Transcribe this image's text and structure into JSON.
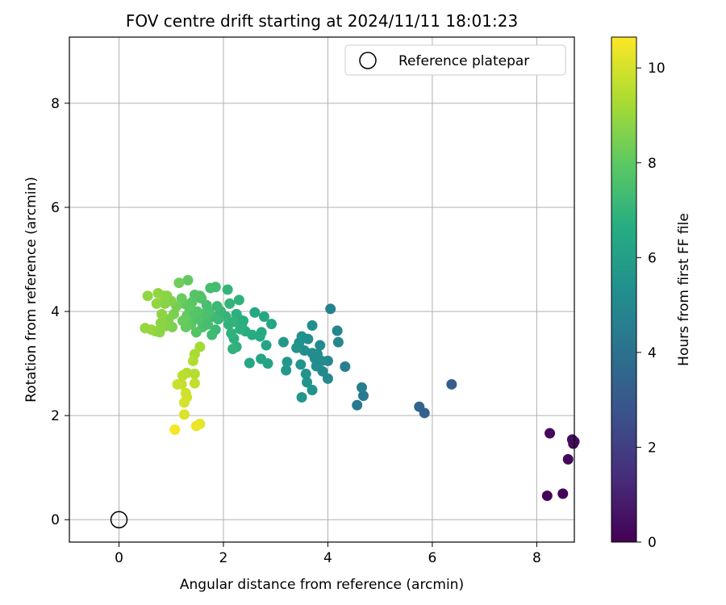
{
  "chart_data": {
    "type": "scatter",
    "title": "FOV centre drift starting at 2024/11/11 18:01:23",
    "xlabel": "Angular distance from reference (arcmin)",
    "ylabel": "Rotation from reference (arcmin)",
    "xlim": [
      -0.95,
      8.72
    ],
    "ylim": [
      -0.43,
      9.27
    ],
    "xticks": [
      0,
      2,
      4,
      6,
      8
    ],
    "yticks": [
      0,
      2,
      4,
      6,
      8
    ],
    "grid": true,
    "legend": {
      "position": "top-right",
      "entries": [
        "Reference platepar"
      ]
    },
    "reference_point": {
      "x": 0,
      "y": 0,
      "marker": "open-circle"
    },
    "colorbar": {
      "label": "Hours from first FF file",
      "colormap": "viridis",
      "min": 0,
      "max": 10.65,
      "ticks": [
        0,
        2,
        4,
        6,
        8,
        10
      ]
    },
    "points": [
      {
        "x": 8.2,
        "y": 0.46,
        "c": 0.1
      },
      {
        "x": 8.5,
        "y": 0.5,
        "c": 0.15
      },
      {
        "x": 8.6,
        "y": 1.16,
        "c": 0.2
      },
      {
        "x": 8.25,
        "y": 1.66,
        "c": 0.25
      },
      {
        "x": 8.68,
        "y": 1.54,
        "c": 0.3
      },
      {
        "x": 8.7,
        "y": 1.46,
        "c": 0.35
      },
      {
        "x": 8.72,
        "y": 1.5,
        "c": 0.3
      },
      {
        "x": 6.37,
        "y": 2.6,
        "c": 3.2
      },
      {
        "x": 5.85,
        "y": 2.05,
        "c": 3.4
      },
      {
        "x": 5.75,
        "y": 2.17,
        "c": 3.5
      },
      {
        "x": 4.56,
        "y": 2.2,
        "c": 4.3
      },
      {
        "x": 4.68,
        "y": 2.38,
        "c": 4.4
      },
      {
        "x": 4.65,
        "y": 2.54,
        "c": 4.5
      },
      {
        "x": 4.33,
        "y": 2.94,
        "c": 4.6
      },
      {
        "x": 4.05,
        "y": 4.05,
        "c": 4.7
      },
      {
        "x": 4.18,
        "y": 3.63,
        "c": 4.8
      },
      {
        "x": 4.2,
        "y": 3.41,
        "c": 4.9
      },
      {
        "x": 4.0,
        "y": 3.05,
        "c": 5.0
      },
      {
        "x": 4.0,
        "y": 2.71,
        "c": 5.0
      },
      {
        "x": 3.9,
        "y": 2.85,
        "c": 5.1
      },
      {
        "x": 3.85,
        "y": 3.35,
        "c": 5.1
      },
      {
        "x": 3.75,
        "y": 3.1,
        "c": 5.2
      },
      {
        "x": 3.7,
        "y": 3.2,
        "c": 5.2
      },
      {
        "x": 3.62,
        "y": 3.47,
        "c": 5.3
      },
      {
        "x": 3.55,
        "y": 3.25,
        "c": 5.3
      },
      {
        "x": 3.5,
        "y": 3.52,
        "c": 5.4
      },
      {
        "x": 3.45,
        "y": 3.4,
        "c": 5.4
      },
      {
        "x": 3.4,
        "y": 3.3,
        "c": 5.5
      },
      {
        "x": 3.7,
        "y": 3.73,
        "c": 5.3
      },
      {
        "x": 3.7,
        "y": 2.49,
        "c": 5.4
      },
      {
        "x": 3.6,
        "y": 2.64,
        "c": 5.5
      },
      {
        "x": 3.58,
        "y": 2.8,
        "c": 5.5
      },
      {
        "x": 3.5,
        "y": 2.35,
        "c": 5.6
      },
      {
        "x": 3.48,
        "y": 2.98,
        "c": 5.6
      },
      {
        "x": 3.2,
        "y": 2.87,
        "c": 5.7
      },
      {
        "x": 3.22,
        "y": 3.03,
        "c": 5.7
      },
      {
        "x": 3.15,
        "y": 3.41,
        "c": 5.8
      },
      {
        "x": 3.78,
        "y": 2.95,
        "c": 5.2
      },
      {
        "x": 3.88,
        "y": 3.05,
        "c": 5.1
      },
      {
        "x": 3.8,
        "y": 3.18,
        "c": 5.2
      },
      {
        "x": 2.85,
        "y": 3.0,
        "c": 6.2
      },
      {
        "x": 2.72,
        "y": 3.09,
        "c": 6.3
      },
      {
        "x": 2.5,
        "y": 3.01,
        "c": 6.4
      },
      {
        "x": 2.82,
        "y": 3.35,
        "c": 6.2
      },
      {
        "x": 2.92,
        "y": 3.76,
        "c": 6.3
      },
      {
        "x": 2.78,
        "y": 3.9,
        "c": 6.4
      },
      {
        "x": 2.6,
        "y": 3.98,
        "c": 6.4
      },
      {
        "x": 2.7,
        "y": 3.52,
        "c": 6.5
      },
      {
        "x": 2.73,
        "y": 3.6,
        "c": 6.5
      },
      {
        "x": 2.55,
        "y": 3.55,
        "c": 6.6
      },
      {
        "x": 2.42,
        "y": 3.62,
        "c": 6.6
      },
      {
        "x": 2.35,
        "y": 3.72,
        "c": 6.7
      },
      {
        "x": 2.3,
        "y": 3.85,
        "c": 6.7
      },
      {
        "x": 2.25,
        "y": 3.32,
        "c": 6.8
      },
      {
        "x": 2.2,
        "y": 3.48,
        "c": 6.8
      },
      {
        "x": 2.15,
        "y": 3.58,
        "c": 6.9
      },
      {
        "x": 2.1,
        "y": 3.75,
        "c": 6.9
      },
      {
        "x": 2.05,
        "y": 3.9,
        "c": 7.0
      },
      {
        "x": 2.3,
        "y": 4.22,
        "c": 6.9
      },
      {
        "x": 2.08,
        "y": 4.42,
        "c": 7.0
      },
      {
        "x": 2.12,
        "y": 4.15,
        "c": 7.0
      },
      {
        "x": 2.25,
        "y": 3.95,
        "c": 6.8
      },
      {
        "x": 2.38,
        "y": 3.82,
        "c": 6.7
      },
      {
        "x": 2.32,
        "y": 3.66,
        "c": 6.8
      },
      {
        "x": 2.2,
        "y": 3.8,
        "c": 6.9
      },
      {
        "x": 2.18,
        "y": 3.28,
        "c": 6.9
      },
      {
        "x": 1.85,
        "y": 3.65,
        "c": 7.2
      },
      {
        "x": 1.8,
        "y": 3.9,
        "c": 7.3
      },
      {
        "x": 1.78,
        "y": 3.55,
        "c": 7.3
      },
      {
        "x": 1.75,
        "y": 4.45,
        "c": 7.4
      },
      {
        "x": 1.85,
        "y": 4.47,
        "c": 7.4
      },
      {
        "x": 1.72,
        "y": 4.0,
        "c": 7.5
      },
      {
        "x": 1.68,
        "y": 4.12,
        "c": 7.5
      },
      {
        "x": 1.65,
        "y": 3.82,
        "c": 7.6
      },
      {
        "x": 1.6,
        "y": 3.7,
        "c": 7.6
      },
      {
        "x": 1.62,
        "y": 3.95,
        "c": 7.6
      },
      {
        "x": 1.58,
        "y": 4.25,
        "c": 7.7
      },
      {
        "x": 1.55,
        "y": 4.3,
        "c": 7.7
      },
      {
        "x": 1.5,
        "y": 4.0,
        "c": 7.8
      },
      {
        "x": 1.48,
        "y": 3.6,
        "c": 7.8
      },
      {
        "x": 1.45,
        "y": 4.32,
        "c": 7.8
      },
      {
        "x": 1.42,
        "y": 3.88,
        "c": 7.9
      },
      {
        "x": 1.4,
        "y": 4.18,
        "c": 7.9
      },
      {
        "x": 1.38,
        "y": 3.75,
        "c": 8.0
      },
      {
        "x": 1.35,
        "y": 4.05,
        "c": 8.0
      },
      {
        "x": 1.3,
        "y": 3.92,
        "c": 8.1
      },
      {
        "x": 1.28,
        "y": 3.7,
        "c": 8.1
      },
      {
        "x": 1.25,
        "y": 4.15,
        "c": 8.1
      },
      {
        "x": 1.22,
        "y": 3.82,
        "c": 8.2
      },
      {
        "x": 1.2,
        "y": 4.25,
        "c": 8.2
      },
      {
        "x": 1.32,
        "y": 4.6,
        "c": 8.1
      },
      {
        "x": 1.15,
        "y": 4.55,
        "c": 8.3
      },
      {
        "x": 1.9,
        "y": 3.85,
        "c": 7.2
      },
      {
        "x": 1.95,
        "y": 4.0,
        "c": 7.1
      },
      {
        "x": 1.88,
        "y": 4.1,
        "c": 7.2
      },
      {
        "x": 1.7,
        "y": 3.75,
        "c": 7.4
      },
      {
        "x": 1.52,
        "y": 3.85,
        "c": 7.7
      },
      {
        "x": 1.44,
        "y": 3.96,
        "c": 7.8
      },
      {
        "x": 1.36,
        "y": 4.1,
        "c": 8.0
      },
      {
        "x": 1.1,
        "y": 4.1,
        "c": 8.4
      },
      {
        "x": 1.05,
        "y": 3.95,
        "c": 8.5
      },
      {
        "x": 1.02,
        "y": 3.7,
        "c": 8.5
      },
      {
        "x": 1.0,
        "y": 4.2,
        "c": 8.6
      },
      {
        "x": 0.95,
        "y": 3.85,
        "c": 8.6
      },
      {
        "x": 0.92,
        "y": 4.3,
        "c": 8.7
      },
      {
        "x": 0.9,
        "y": 3.72,
        "c": 8.7
      },
      {
        "x": 0.88,
        "y": 4.15,
        "c": 8.7
      },
      {
        "x": 0.85,
        "y": 4.3,
        "c": 8.8
      },
      {
        "x": 0.82,
        "y": 3.95,
        "c": 8.8
      },
      {
        "x": 0.8,
        "y": 3.78,
        "c": 8.8
      },
      {
        "x": 0.75,
        "y": 4.35,
        "c": 8.9
      },
      {
        "x": 0.72,
        "y": 4.15,
        "c": 8.9
      },
      {
        "x": 0.7,
        "y": 3.62,
        "c": 8.9
      },
      {
        "x": 0.62,
        "y": 3.65,
        "c": 9.0
      },
      {
        "x": 0.55,
        "y": 4.3,
        "c": 8.9
      },
      {
        "x": 0.5,
        "y": 3.68,
        "c": 9.0
      },
      {
        "x": 0.78,
        "y": 3.6,
        "c": 8.8
      },
      {
        "x": 1.55,
        "y": 3.32,
        "c": 9.2
      },
      {
        "x": 1.45,
        "y": 3.18,
        "c": 9.3
      },
      {
        "x": 1.42,
        "y": 3.05,
        "c": 9.4
      },
      {
        "x": 1.45,
        "y": 2.8,
        "c": 9.5
      },
      {
        "x": 1.3,
        "y": 2.82,
        "c": 9.5
      },
      {
        "x": 1.22,
        "y": 2.77,
        "c": 9.6
      },
      {
        "x": 1.45,
        "y": 2.62,
        "c": 9.7
      },
      {
        "x": 1.2,
        "y": 2.6,
        "c": 9.7
      },
      {
        "x": 1.12,
        "y": 2.6,
        "c": 9.8
      },
      {
        "x": 1.3,
        "y": 2.35,
        "c": 9.9
      },
      {
        "x": 1.28,
        "y": 2.43,
        "c": 9.9
      },
      {
        "x": 1.25,
        "y": 2.25,
        "c": 10.0
      },
      {
        "x": 1.25,
        "y": 2.02,
        "c": 10.1
      },
      {
        "x": 1.55,
        "y": 1.84,
        "c": 10.3
      },
      {
        "x": 1.48,
        "y": 1.8,
        "c": 10.4
      },
      {
        "x": 1.07,
        "y": 1.73,
        "c": 10.5
      }
    ]
  }
}
